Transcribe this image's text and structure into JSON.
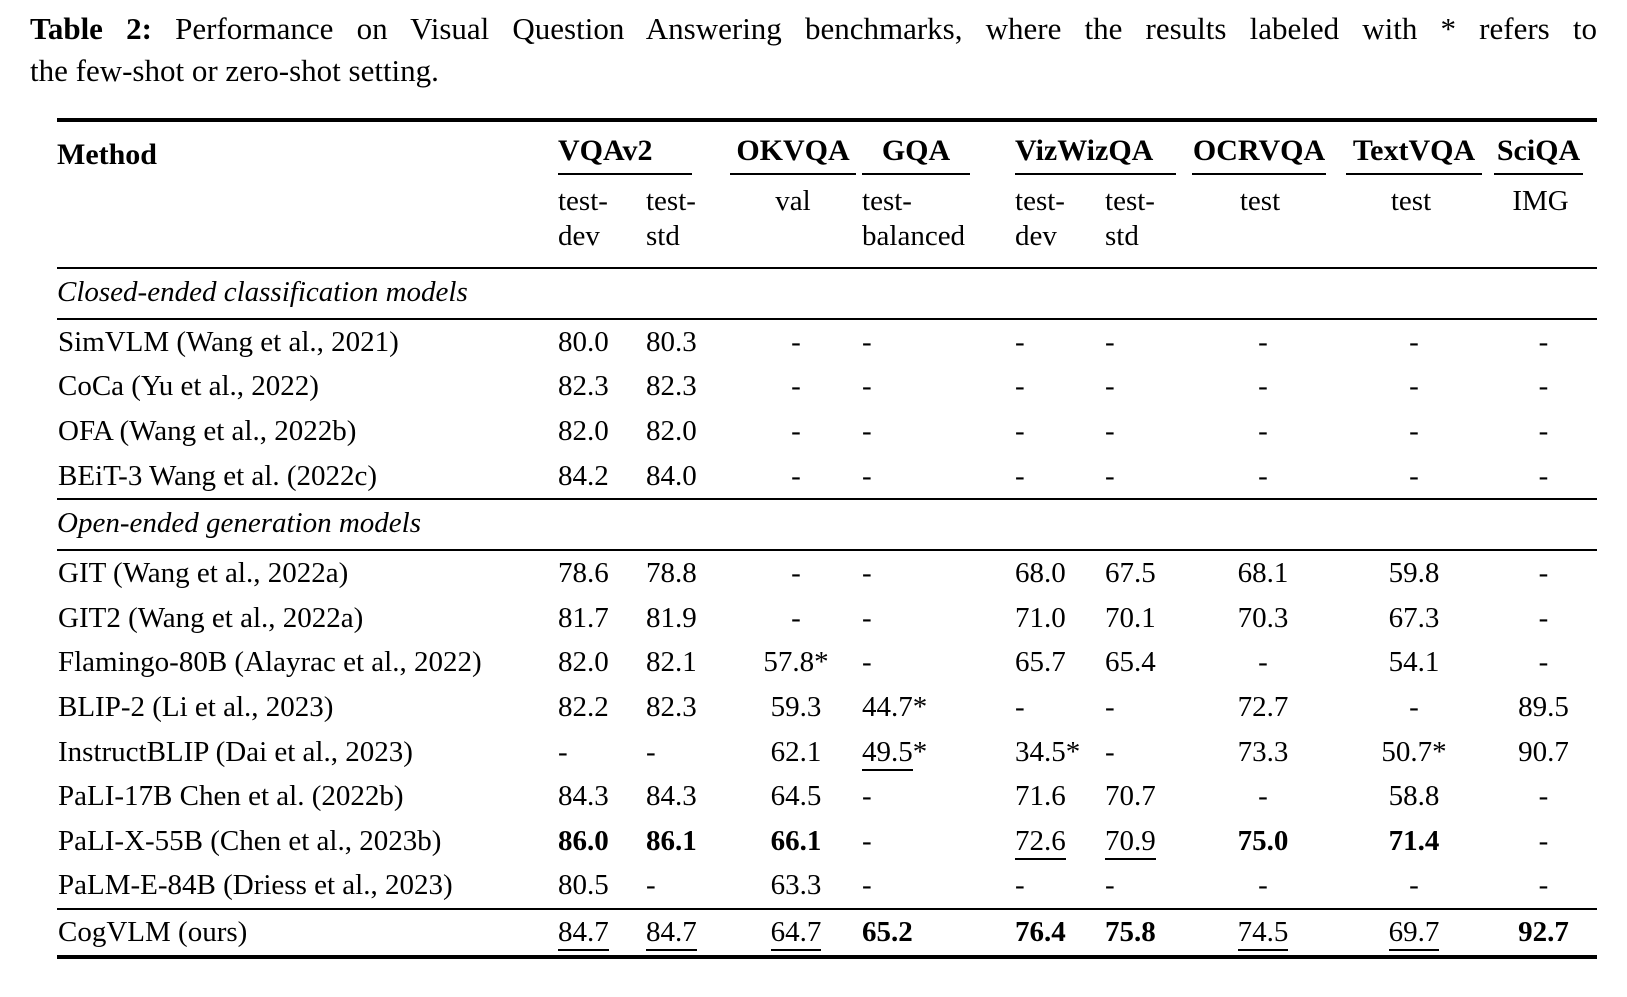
{
  "caption": {
    "label": "Table 2:",
    "line1": "Performance on Visual Question Answering benchmarks, where the results labeled with * refers to",
    "line2": "the few-shot or zero-shot setting."
  },
  "table": {
    "method_header": "Method",
    "groups": [
      {
        "name": "VQAv2",
        "span": 2
      },
      {
        "name": "OKVQA",
        "span": 1
      },
      {
        "name": "GQA",
        "span": 1
      },
      {
        "name": "VizWizQA",
        "span": 2
      },
      {
        "name": "OCRVQA",
        "span": 1
      },
      {
        "name": "TextVQA",
        "span": 1
      },
      {
        "name": "SciQA",
        "span": 1
      }
    ],
    "subheaders": [
      "test-dev",
      "test-std",
      "val",
      "test-balanced",
      "test-dev",
      "test-std",
      "test",
      "test",
      "IMG"
    ],
    "column_aligns": [
      "left",
      "left",
      "center",
      "left",
      "left",
      "left",
      "center",
      "center",
      "center"
    ],
    "sections": [
      {
        "title": "Closed-ended classification models",
        "rows": [
          {
            "method": "SimVLM (Wang et al., 2021)",
            "values": [
              "80.0",
              "80.3",
              "-",
              "-",
              "-",
              "-",
              "-",
              "-",
              "-"
            ]
          },
          {
            "method": "CoCa (Yu et al., 2022)",
            "values": [
              "82.3",
              "82.3",
              "-",
              "-",
              "-",
              "-",
              "-",
              "-",
              "-"
            ]
          },
          {
            "method": "OFA (Wang et al., 2022b)",
            "values": [
              "82.0",
              "82.0",
              "-",
              "-",
              "-",
              "-",
              "-",
              "-",
              "-"
            ]
          },
          {
            "method": "BEiT-3 Wang et al. (2022c)",
            "values": [
              "84.2",
              "84.0",
              "-",
              "-",
              "-",
              "-",
              "-",
              "-",
              "-"
            ]
          }
        ]
      },
      {
        "title": "Open-ended generation models",
        "rows": [
          {
            "method": "GIT (Wang et al., 2022a)",
            "values": [
              "78.6",
              "78.8",
              "-",
              "-",
              "68.0",
              "67.5",
              "68.1",
              "59.8",
              "-"
            ]
          },
          {
            "method": "GIT2 (Wang et al., 2022a)",
            "values": [
              "81.7",
              "81.9",
              "-",
              "-",
              "71.0",
              "70.1",
              "70.3",
              "67.3",
              "-"
            ]
          },
          {
            "method": "Flamingo-80B (Alayrac et al., 2022)",
            "values": [
              "82.0",
              "82.1",
              "57.8*",
              "-",
              "65.7",
              "65.4",
              "-",
              "54.1",
              "-"
            ]
          },
          {
            "method": "BLIP-2 (Li et al., 2023)",
            "values": [
              "82.2",
              "82.3",
              "59.3",
              "44.7*",
              "-",
              "-",
              "72.7",
              "-",
              "89.5"
            ]
          },
          {
            "method": "InstructBLIP (Dai et al., 2023)",
            "values": [
              "-",
              "-",
              "62.1",
              {
                "t": "49.5",
                "u": true,
                "star": true
              },
              "34.5*",
              "-",
              "73.3",
              "50.7*",
              "90.7"
            ]
          },
          {
            "method": "PaLI-17B Chen et al. (2022b)",
            "values": [
              "84.3",
              "84.3",
              "64.5",
              "-",
              "71.6",
              "70.7",
              "-",
              "58.8",
              "-"
            ]
          },
          {
            "method": "PaLI-X-55B (Chen et al., 2023b)",
            "values": [
              {
                "t": "86.0",
                "b": true
              },
              {
                "t": "86.1",
                "b": true
              },
              {
                "t": "66.1",
                "b": true
              },
              "-",
              {
                "t": "72.6",
                "u": true
              },
              {
                "t": "70.9",
                "u": true
              },
              {
                "t": "75.0",
                "b": true
              },
              {
                "t": "71.4",
                "b": true
              },
              "-"
            ]
          },
          {
            "method": "PaLM-E-84B (Driess et al., 2023)",
            "values": [
              "80.5",
              "-",
              "63.3",
              "-",
              "-",
              "-",
              "-",
              "-",
              "-"
            ]
          }
        ]
      }
    ],
    "final_row": {
      "method": "CogVLM (ours)",
      "values": [
        {
          "t": "84.7",
          "u": true
        },
        {
          "t": "84.7",
          "u": true
        },
        {
          "t": "64.7",
          "u": true
        },
        {
          "t": "65.2",
          "b": true
        },
        {
          "t": "76.4",
          "b": true
        },
        {
          "t": "75.8",
          "b": true
        },
        {
          "t": "74.5",
          "u": true
        },
        {
          "t": "69.7",
          "u": true
        },
        {
          "t": "92.7",
          "b": true
        }
      ]
    }
  }
}
